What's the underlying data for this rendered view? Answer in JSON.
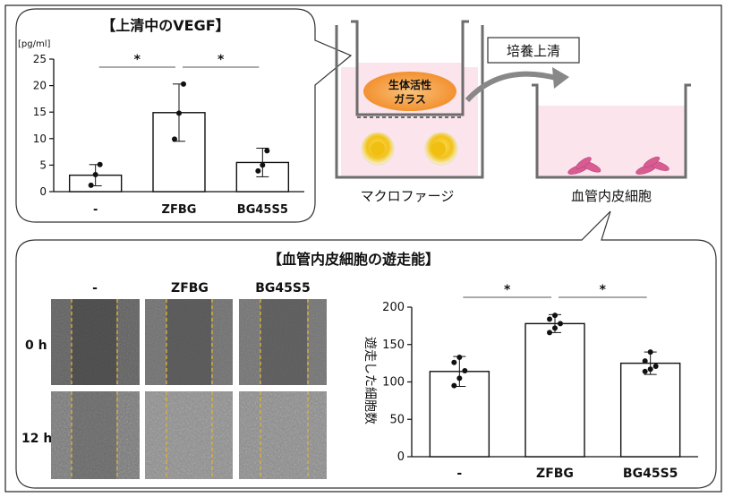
{
  "top_panel": {
    "title": "【上清中のVEGF】",
    "unit": "[pg/ml]"
  },
  "illustration": {
    "glass_label_line1": "生体活性",
    "glass_label_line2": "ガラス",
    "supernatant_label": "培養上清",
    "macrophage_label": "マクロファージ",
    "endothelial_label": "血管内皮細胞"
  },
  "bottom_panel": {
    "title": "【血管内皮細胞の遊走能】",
    "columns": [
      "-",
      "ZFBG",
      "BG45S5"
    ],
    "rows": [
      "0 h",
      "12 h"
    ]
  },
  "chart_data": [
    {
      "type": "bar",
      "title": "【上清中のVEGF】",
      "ylabel": "[pg/ml]",
      "categories": [
        "-",
        "ZFBG",
        "BG45S5"
      ],
      "values": [
        3.1,
        14.9,
        5.5
      ],
      "errors": [
        2.0,
        5.4,
        2.7
      ],
      "points": [
        [
          1.2,
          3.2,
          5.1
        ],
        [
          9.9,
          14.8,
          20.3
        ],
        [
          3.9,
          5.0,
          7.7
        ]
      ],
      "ylim": [
        0,
        25
      ],
      "yticks": [
        0,
        5,
        10,
        15,
        20,
        25
      ],
      "significance": [
        {
          "from": 0,
          "to": 1,
          "label": "*"
        },
        {
          "from": 1,
          "to": 2,
          "label": "*"
        }
      ]
    },
    {
      "type": "bar",
      "ylabel": "遊走した細胞数",
      "categories": [
        "-",
        "ZFBG",
        "BG45S5"
      ],
      "values": [
        114,
        178,
        125
      ],
      "errors": [
        20,
        12,
        15
      ],
      "points": [
        [
          95,
          105,
          115,
          126,
          133
        ],
        [
          166,
          172,
          178,
          184,
          189
        ],
        [
          114,
          117,
          121,
          128,
          140
        ]
      ],
      "ylim": [
        0,
        200
      ],
      "yticks": [
        0,
        50,
        100,
        150,
        200
      ],
      "significance": [
        {
          "from": 0,
          "to": 1,
          "label": "*"
        },
        {
          "from": 1,
          "to": 2,
          "label": "*"
        }
      ]
    }
  ]
}
